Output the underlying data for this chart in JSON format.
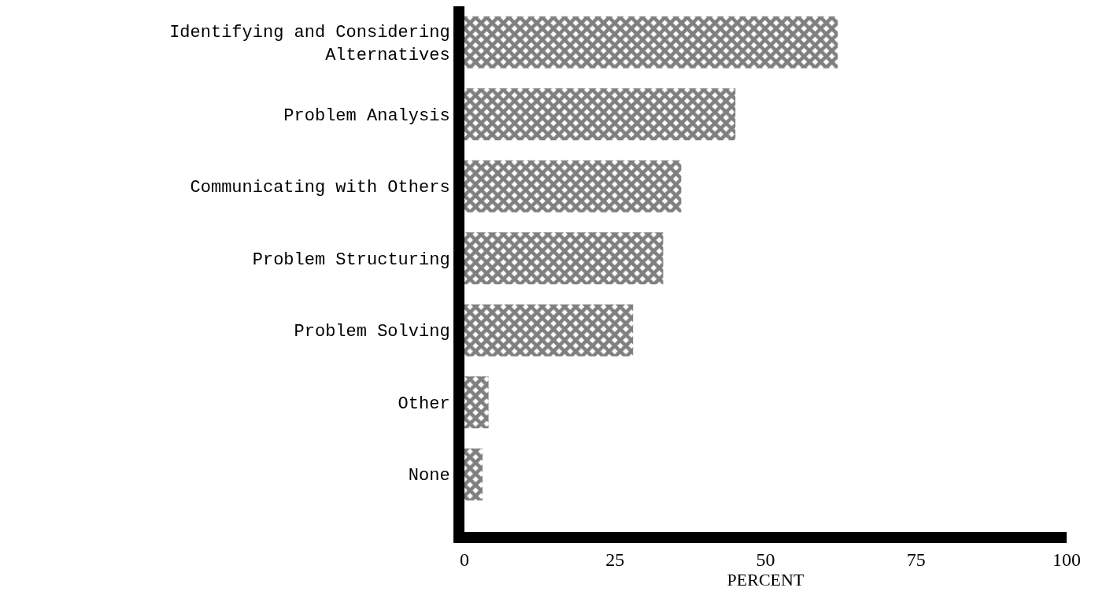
{
  "chart_data": {
    "type": "bar",
    "orientation": "horizontal",
    "xlabel": "PERCENT",
    "categories": [
      "Identifying and Considering Alternatives",
      "Problem Analysis",
      "Communicating with Others",
      "Problem Structuring",
      "Problem Solving",
      "Other",
      "None"
    ],
    "values": [
      62,
      45,
      36,
      33,
      28,
      4,
      3
    ],
    "color": "#000000",
    "xlim": [
      0,
      100
    ],
    "xticks": [
      0,
      25,
      50,
      75,
      100
    ],
    "grid": false
  }
}
